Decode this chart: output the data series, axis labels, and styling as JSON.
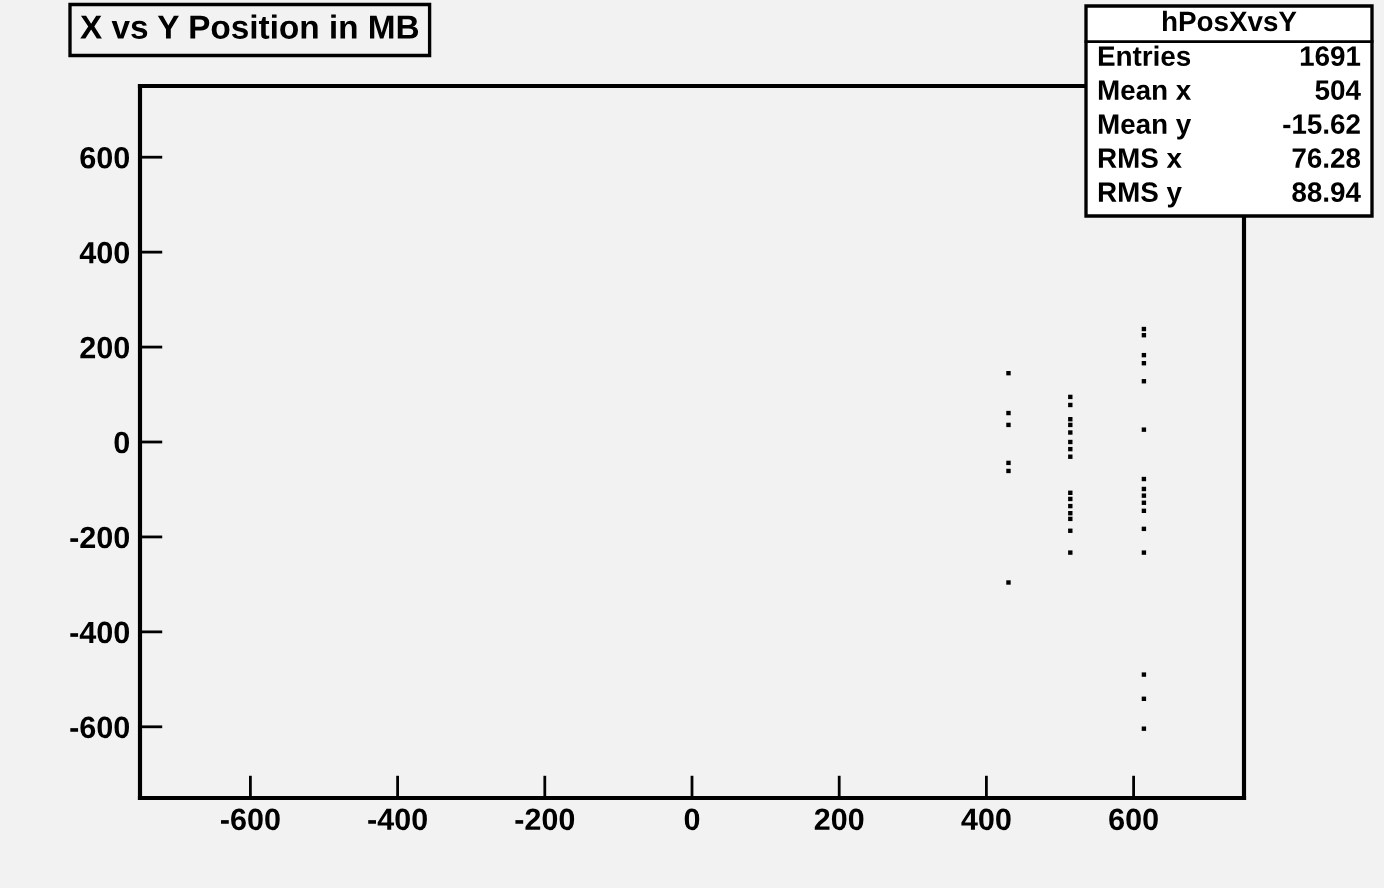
{
  "chart_data": {
    "type": "scatter",
    "title": "X vs Y Position in MB",
    "series": [
      {
        "color": "#000000",
        "x": [
          430,
          430,
          430,
          430,
          430,
          430,
          514,
          514,
          514,
          514,
          514,
          514,
          514,
          514,
          514,
          514,
          514,
          514,
          514,
          514,
          514,
          614,
          614,
          614,
          614,
          614,
          614,
          614,
          614,
          614,
          614,
          614,
          614,
          614,
          614,
          614,
          614
        ],
        "values": [
          145,
          61,
          36,
          -44,
          -61,
          -296,
          95,
          78,
          48,
          36,
          0,
          -15,
          -31,
          -107,
          -120,
          -135,
          -150,
          -162,
          -187,
          -233,
          20,
          238,
          225,
          183,
          166,
          128,
          26,
          -78,
          -99,
          -113,
          -128,
          -145,
          -183,
          -233,
          -490,
          -541,
          -604
        ]
      }
    ],
    "marker": "square",
    "xlim": [
      -750,
      750
    ],
    "ylim": [
      -750,
      750
    ],
    "xticks": [
      -600,
      -400,
      -200,
      0,
      200,
      400,
      600
    ],
    "yticks": [
      -600,
      -400,
      -200,
      0,
      200,
      400,
      600
    ],
    "annotations": [
      "hPosXvsY",
      "Entries",
      "1691",
      "Mean x",
      "504",
      "Mean y",
      "-15.62",
      "RMS x",
      "76.28",
      "RMS y",
      "88.94"
    ]
  }
}
